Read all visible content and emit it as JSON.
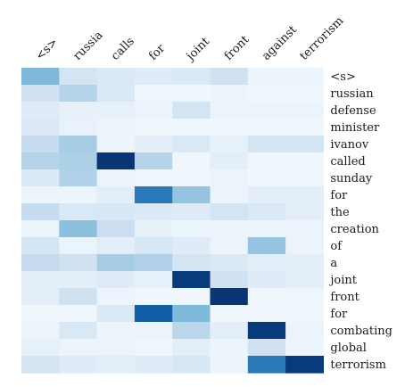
{
  "chart_data": {
    "type": "heatmap",
    "title": "",
    "xlabel": "",
    "ylabel": "",
    "colormap": "Blues",
    "value_range": [
      0,
      1
    ],
    "grid": false,
    "x_labels": [
      "<s>",
      "russia",
      "calls",
      "for",
      "joint",
      "front",
      "against",
      "terrorism"
    ],
    "y_labels": [
      "<s>",
      "russian",
      "defense",
      "minister",
      "ivanov",
      "called",
      "sunday",
      "for",
      "the",
      "creation",
      "of",
      "a",
      "joint",
      "front",
      "for",
      "combating",
      "global",
      "terrorism"
    ],
    "values": [
      [
        0.45,
        0.18,
        0.14,
        0.12,
        0.14,
        0.2,
        0.05,
        0.05
      ],
      [
        0.2,
        0.3,
        0.15,
        0.04,
        0.04,
        0.05,
        0.04,
        0.04
      ],
      [
        0.12,
        0.08,
        0.08,
        0.05,
        0.18,
        0.06,
        0.06,
        0.06
      ],
      [
        0.14,
        0.07,
        0.06,
        0.04,
        0.04,
        0.04,
        0.04,
        0.04
      ],
      [
        0.25,
        0.35,
        0.05,
        0.1,
        0.14,
        0.08,
        0.18,
        0.18
      ],
      [
        0.3,
        0.33,
        0.98,
        0.3,
        0.04,
        0.1,
        0.04,
        0.04
      ],
      [
        0.14,
        0.32,
        0.06,
        0.04,
        0.04,
        0.06,
        0.04,
        0.04
      ],
      [
        0.05,
        0.05,
        0.1,
        0.72,
        0.4,
        0.06,
        0.1,
        0.1
      ],
      [
        0.24,
        0.15,
        0.16,
        0.14,
        0.12,
        0.18,
        0.14,
        0.1
      ],
      [
        0.06,
        0.42,
        0.22,
        0.08,
        0.05,
        0.05,
        0.06,
        0.06
      ],
      [
        0.18,
        0.06,
        0.1,
        0.16,
        0.12,
        0.06,
        0.4,
        0.06
      ],
      [
        0.25,
        0.2,
        0.35,
        0.32,
        0.18,
        0.14,
        0.1,
        0.1
      ],
      [
        0.1,
        0.1,
        0.12,
        0.08,
        0.96,
        0.2,
        0.12,
        0.1
      ],
      [
        0.1,
        0.2,
        0.05,
        0.04,
        0.04,
        0.98,
        0.04,
        0.04
      ],
      [
        0.04,
        0.04,
        0.14,
        0.82,
        0.45,
        0.04,
        0.04,
        0.04
      ],
      [
        0.05,
        0.15,
        0.05,
        0.06,
        0.28,
        0.1,
        0.96,
        0.06
      ],
      [
        0.08,
        0.06,
        0.06,
        0.04,
        0.1,
        0.05,
        0.2,
        0.05
      ],
      [
        0.18,
        0.12,
        0.1,
        0.12,
        0.16,
        0.05,
        0.72,
        0.96
      ]
    ]
  }
}
